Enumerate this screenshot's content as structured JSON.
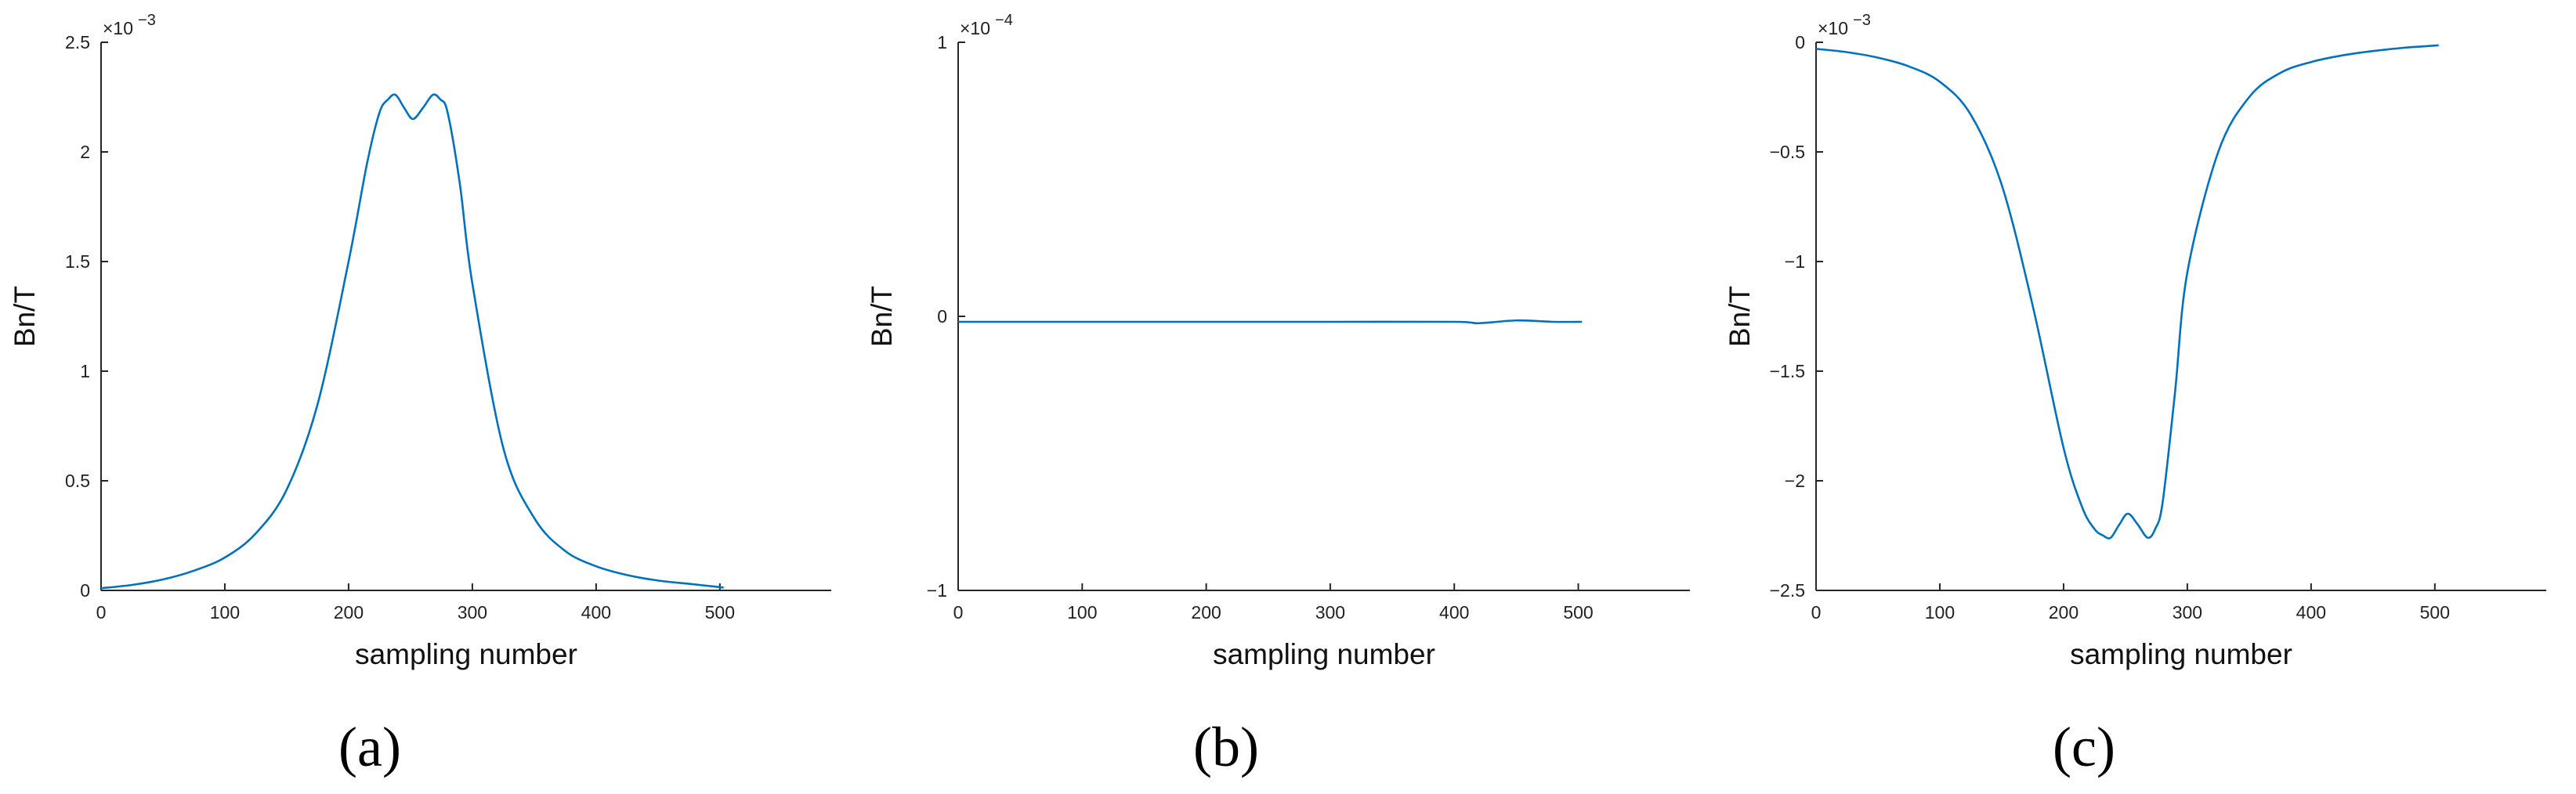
{
  "colors": {
    "series": "#0072BD",
    "axis": "#262626"
  },
  "chart_data": [
    {
      "type": "line",
      "panel_label": "(a)",
      "xlabel": "sampling number",
      "ylabel": "Bn/T",
      "exponent_base": "×10",
      "exponent_power": "−3",
      "xlim": [
        0,
        590
      ],
      "ylim": [
        0,
        2.5
      ],
      "xticks": [
        0,
        100,
        200,
        300,
        400,
        500
      ],
      "xtick_labels": [
        "0",
        "100",
        "200",
        "300",
        "400",
        "500"
      ],
      "yticks": [
        0,
        0.5,
        1,
        1.5,
        2,
        2.5
      ],
      "ytick_labels": [
        "0",
        "0.5",
        "1",
        "1.5",
        "2",
        "2.5"
      ],
      "series": [
        {
          "x": [
            0,
            25,
            50,
            75,
            100,
            125,
            150,
            175,
            200,
            215,
            225,
            232,
            238,
            245,
            252,
            260,
            268,
            274,
            280,
            290,
            300,
            325,
            350,
            375,
            400,
            425,
            450,
            475,
            500,
            503
          ],
          "values": [
            0.01,
            0.025,
            0.05,
            0.09,
            0.15,
            0.26,
            0.46,
            0.85,
            1.5,
            1.95,
            2.18,
            2.24,
            2.26,
            2.2,
            2.15,
            2.2,
            2.26,
            2.24,
            2.18,
            1.85,
            1.4,
            0.65,
            0.33,
            0.18,
            0.11,
            0.07,
            0.045,
            0.03,
            0.015,
            0.012
          ]
        }
      ]
    },
    {
      "type": "line",
      "panel_label": "(b)",
      "xlabel": "sampling number",
      "ylabel": "Bn/T",
      "exponent_base": "×10",
      "exponent_power": "−4",
      "xlim": [
        0,
        590
      ],
      "ylim": [
        -1,
        1
      ],
      "xticks": [
        0,
        100,
        200,
        300,
        400,
        500
      ],
      "xtick_labels": [
        "0",
        "100",
        "200",
        "300",
        "400",
        "500"
      ],
      "yticks": [
        -1,
        0,
        1
      ],
      "ytick_labels": [
        "−1",
        "0",
        "1"
      ],
      "series": [
        {
          "x": [
            0,
            100,
            200,
            300,
            400,
            420,
            450,
            480,
            503
          ],
          "values": [
            -0.02,
            -0.02,
            -0.02,
            -0.02,
            -0.02,
            -0.025,
            -0.015,
            -0.02,
            -0.02
          ]
        }
      ]
    },
    {
      "type": "line",
      "panel_label": "(c)",
      "xlabel": "sampling number",
      "ylabel": "Bn/T",
      "exponent_base": "×10",
      "exponent_power": "−3",
      "xlim": [
        0,
        590
      ],
      "ylim": [
        -2.5,
        0
      ],
      "xticks": [
        0,
        100,
        200,
        300,
        400,
        500
      ],
      "xtick_labels": [
        "0",
        "100",
        "200",
        "300",
        "400",
        "500"
      ],
      "yticks": [
        -2.5,
        -2,
        -1.5,
        -1,
        -0.5,
        0
      ],
      "ytick_labels": [
        "−2.5",
        "−2",
        "−1.5",
        "−1",
        "−0.5",
        "0"
      ],
      "series": [
        {
          "x": [
            0,
            25,
            50,
            75,
            100,
            125,
            150,
            175,
            200,
            215,
            225,
            232,
            238,
            245,
            252,
            260,
            268,
            274,
            280,
            290,
            300,
            325,
            350,
            375,
            400,
            425,
            450,
            475,
            500,
            503
          ],
          "values": [
            -0.03,
            -0.045,
            -0.07,
            -0.11,
            -0.18,
            -0.33,
            -0.65,
            -1.2,
            -1.85,
            -2.12,
            -2.22,
            -2.25,
            -2.26,
            -2.2,
            -2.15,
            -2.2,
            -2.26,
            -2.22,
            -2.1,
            -1.6,
            -1.05,
            -0.5,
            -0.25,
            -0.14,
            -0.09,
            -0.06,
            -0.04,
            -0.025,
            -0.015,
            -0.013
          ]
        }
      ]
    }
  ]
}
